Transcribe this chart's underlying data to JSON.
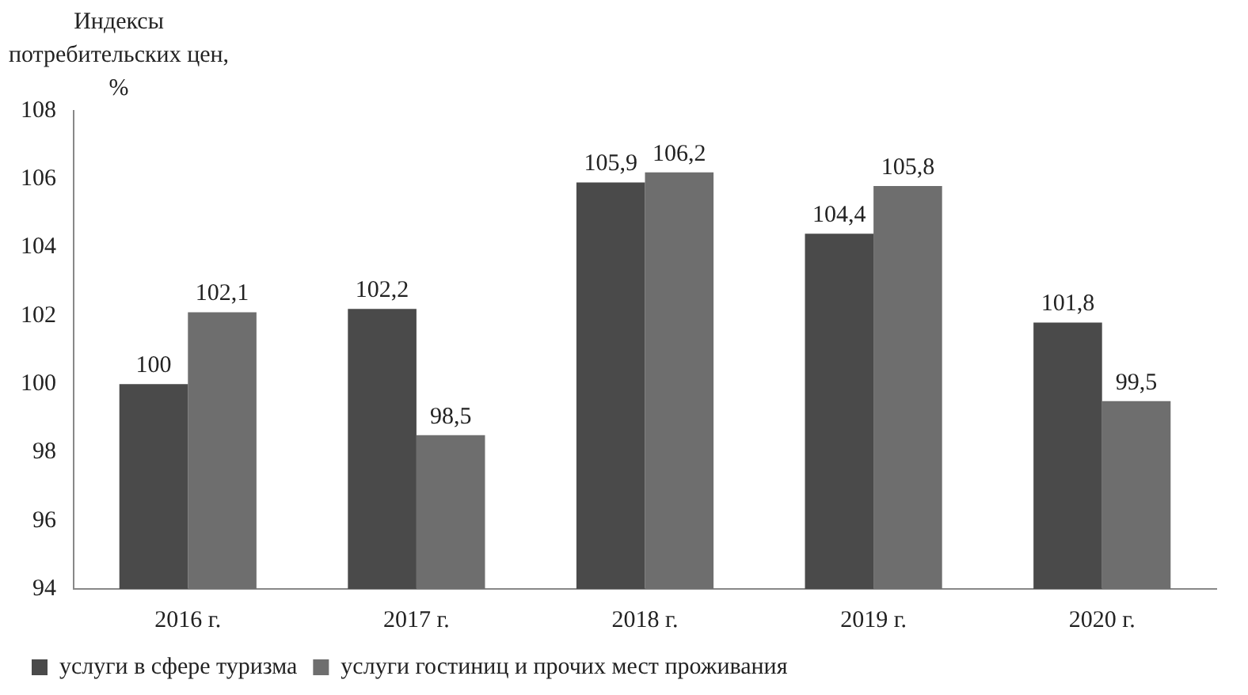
{
  "chart_data": {
    "type": "bar",
    "ylabel": "Индексы потребительских цен, %",
    "categories": [
      "2016 г.",
      "2017 г.",
      "2018 г.",
      "2019 г.",
      "2020 г."
    ],
    "series": [
      {
        "name": "услуги в сфере туризма",
        "color": "#4a4a4a",
        "values": [
          100,
          102.2,
          105.9,
          104.4,
          101.8
        ],
        "value_labels": [
          "100",
          "102,2",
          "105,9",
          "104,4",
          "101,8"
        ]
      },
      {
        "name": "услуги гостиниц и прочих мест проживания",
        "color": "#6e6e6e",
        "values": [
          102.1,
          98.5,
          106.2,
          105.8,
          99.5
        ],
        "value_labels": [
          "102,1",
          "98,5",
          "106,2",
          "105,8",
          "99,5"
        ]
      }
    ],
    "ylim": [
      94,
      108
    ],
    "yticks": [
      94,
      96,
      98,
      100,
      102,
      104,
      106,
      108
    ],
    "grid": false,
    "legend": "bottom left"
  }
}
